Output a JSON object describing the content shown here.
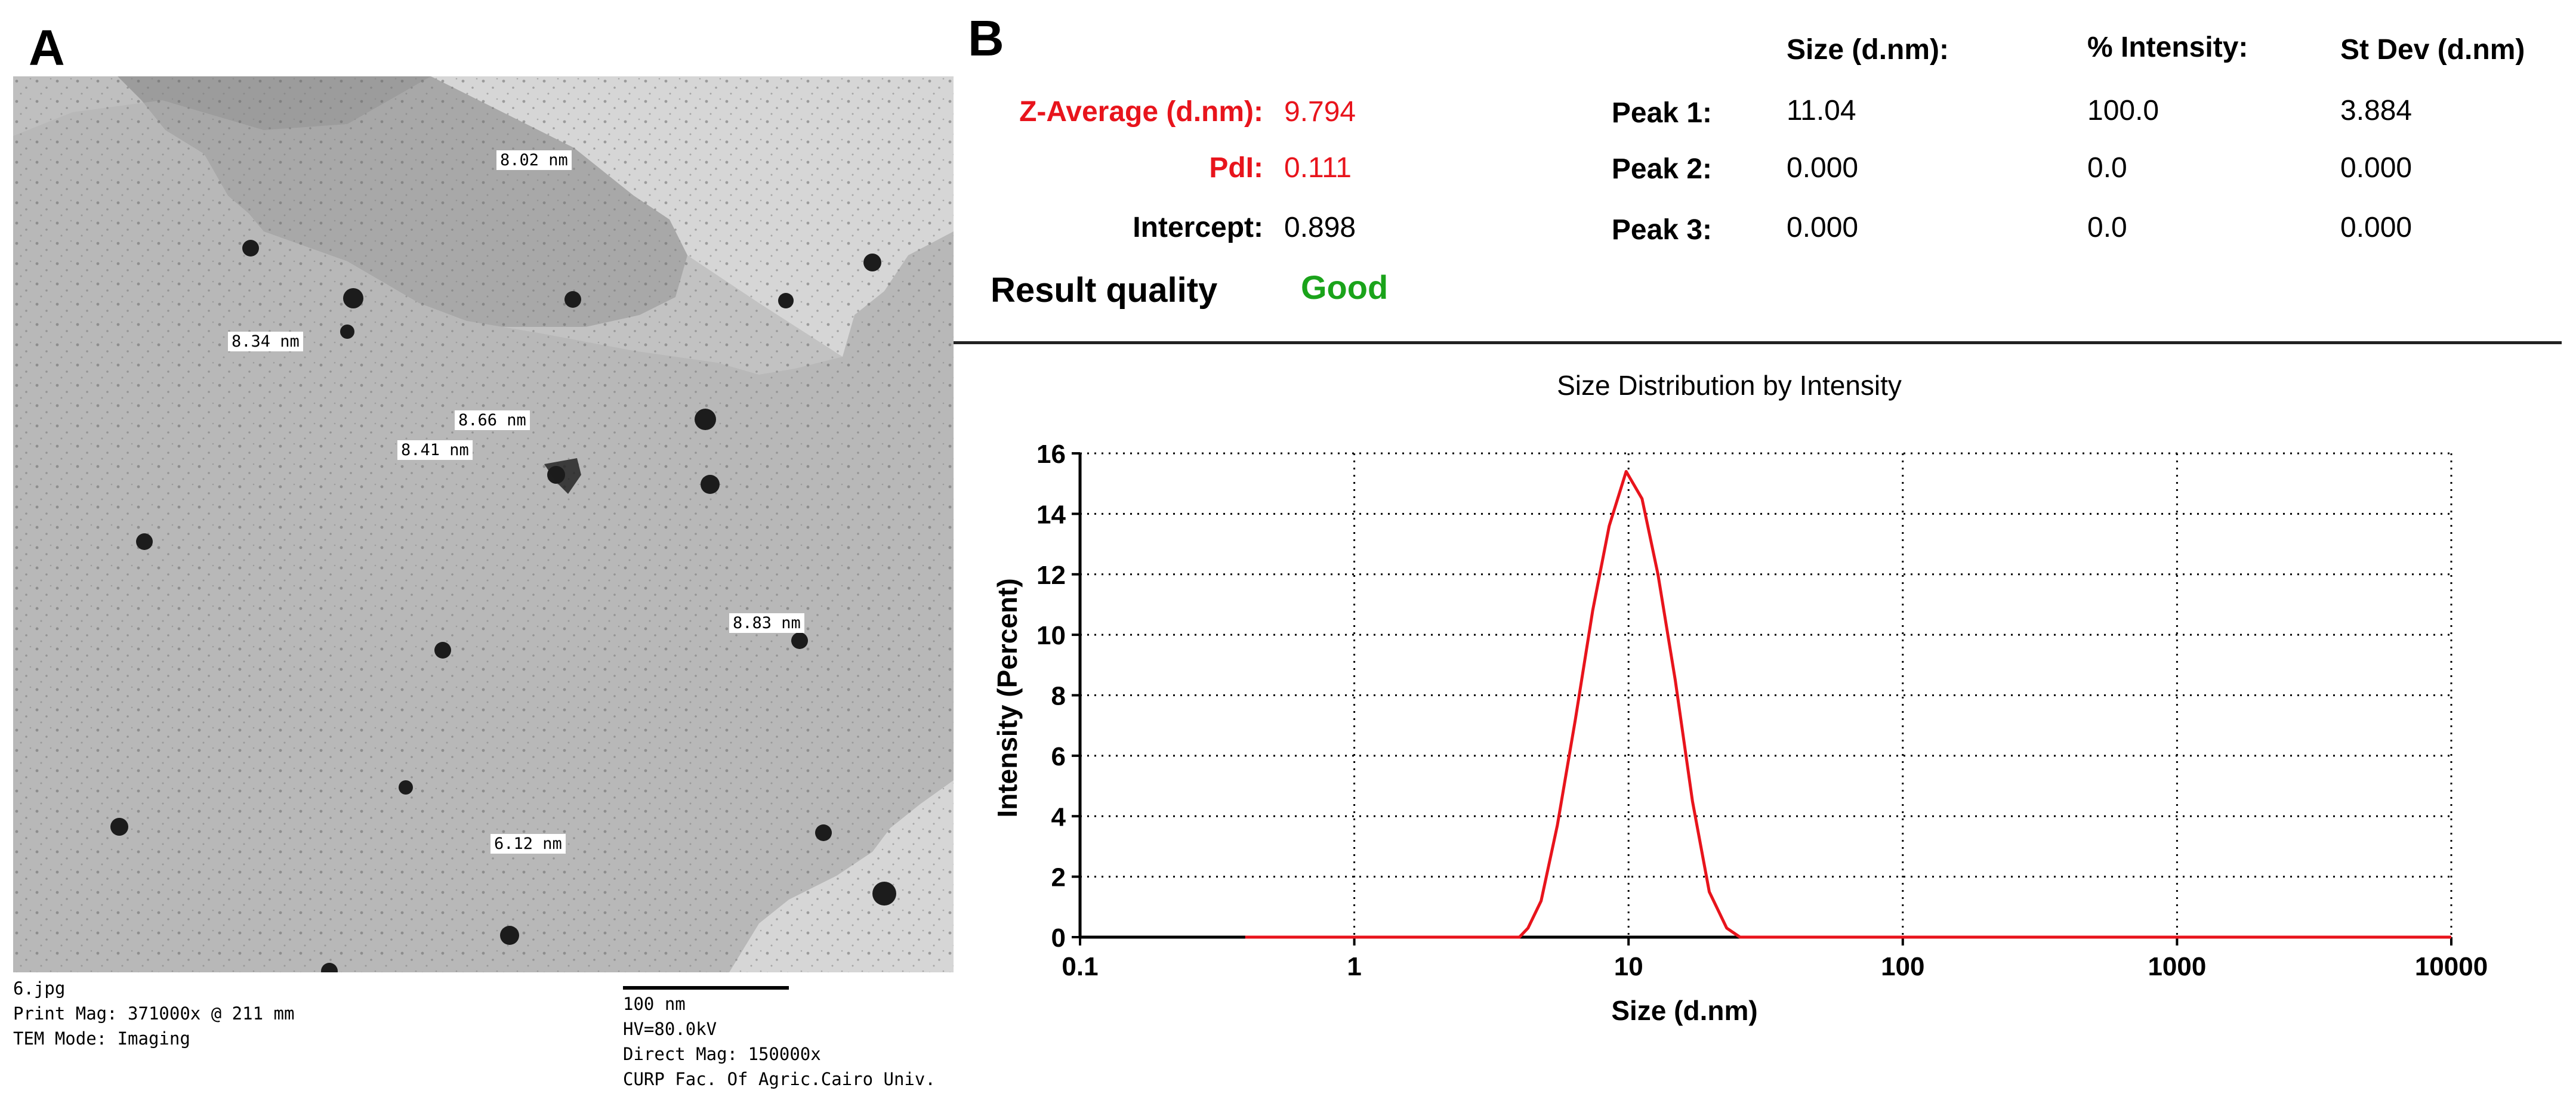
{
  "panel_a": {
    "letter": "A",
    "measurements": [
      "8.02 nm",
      "8.34 nm",
      "8.66 nm",
      "8.41 nm",
      "8.83 nm",
      "6.12 nm"
    ],
    "meta_left": [
      "6.jpg",
      "Print Mag: 371000x @ 211 mm",
      "TEM Mode: Imaging"
    ],
    "scale_bar_label": "100 nm",
    "meta_right": [
      "HV=80.0kV",
      "Direct Mag: 150000x",
      "CURP Fac. Of Agric.Cairo Univ."
    ]
  },
  "panel_b": {
    "letter": "B",
    "z_average_label": "Z-Average (d.nm):",
    "z_average_value": "9.794",
    "pdi_label": "PdI:",
    "pdi_value": "0.111",
    "intercept_label": "Intercept:",
    "intercept_value": "0.898",
    "result_quality_label": "Result quality",
    "result_quality_value": "Good",
    "peak_table": {
      "headers": [
        "Size (d.nm):",
        "% Intensity:",
        "St Dev (d.nm)"
      ],
      "rows": [
        {
          "label": "Peak 1:",
          "size": "11.04",
          "intensity": "100.0",
          "stdev": "3.884"
        },
        {
          "label": "Peak 2:",
          "size": "0.000",
          "intensity": "0.0",
          "stdev": "0.000"
        },
        {
          "label": "Peak 3:",
          "size": "0.000",
          "intensity": "0.0",
          "stdev": "0.000"
        }
      ]
    }
  },
  "colors": {
    "accent_red": "#e8141c",
    "good_green": "#1aa31a"
  },
  "chart_data": {
    "type": "line",
    "title": "Size Distribution by Intensity",
    "xlabel": "Size (d.nm)",
    "ylabel": "Intensity (Percent)",
    "xscale": "log",
    "xlim": [
      0.1,
      10000
    ],
    "ylim": [
      0,
      16
    ],
    "xticks": [
      "0.1",
      "1",
      "10",
      "100",
      "1000",
      "10000"
    ],
    "yticks": [
      "0",
      "2",
      "4",
      "6",
      "8",
      "10",
      "12",
      "14",
      "16"
    ],
    "grid": true,
    "series": [
      {
        "color": "#e8141c",
        "x": [
          0.4,
          4.0,
          4.3,
          4.8,
          5.5,
          6.4,
          7.4,
          8.5,
          9.8,
          11.2,
          12.8,
          14.8,
          17.1,
          19.7,
          22.8,
          25.5,
          28.0,
          10000
        ],
        "y": [
          0,
          0,
          0.3,
          1.2,
          3.7,
          7.2,
          10.8,
          13.6,
          15.4,
          14.5,
          12.0,
          8.5,
          4.5,
          1.5,
          0.3,
          0,
          0,
          0
        ]
      }
    ]
  }
}
